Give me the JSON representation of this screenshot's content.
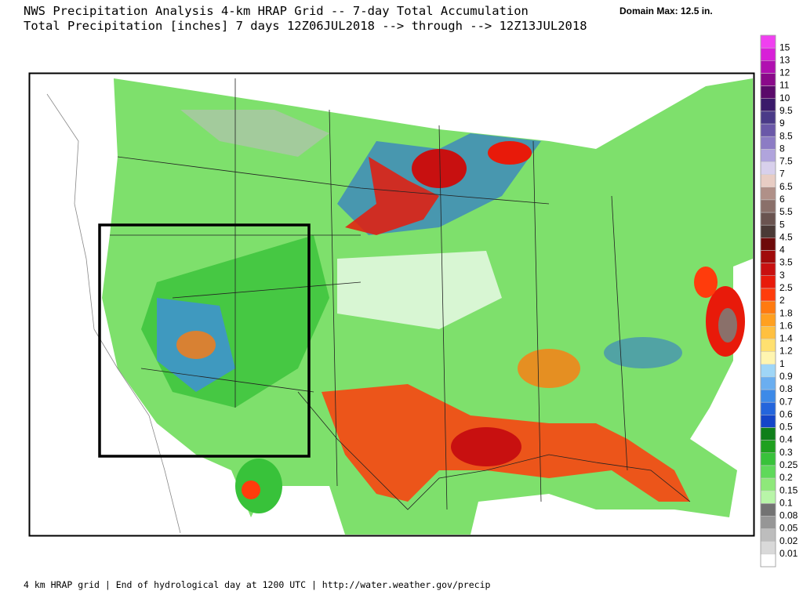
{
  "header": {
    "title": "NWS Precipitation Analysis 4-km HRAP Grid -- 7-day Total Accumulation",
    "subtitle": "Total Precipitation [inches] 7 days 12Z06JUL2018 --> through --> 12Z13JUL2018",
    "domain_max": "Domain Max: 12.5 in."
  },
  "legend": {
    "labels": [
      "0.01",
      "0.02",
      "0.05",
      "0.08",
      "0.1",
      "0.15",
      "0.2",
      "0.25",
      "0.3",
      "0.4",
      "0.5",
      "0.6",
      "0.7",
      "0.8",
      "0.9",
      "1",
      "1.2",
      "1.4",
      "1.6",
      "1.8",
      "2",
      "2.5",
      "3",
      "3.5",
      "4",
      "4.5",
      "5",
      "5.5",
      "6",
      "6.5",
      "7",
      "7.5",
      "8",
      "8.5",
      "9",
      "9.5",
      "10",
      "11",
      "12",
      "13",
      "15"
    ],
    "colors": [
      "#ffffff",
      "#d9d9d9",
      "#bdbdbd",
      "#969696",
      "#737373",
      "#b8f5a8",
      "#8ee87a",
      "#5fd95a",
      "#38c23a",
      "#1fa01f",
      "#0f7f1a",
      "#1445c8",
      "#2465dc",
      "#3d8ae8",
      "#6aaef0",
      "#9fd6f7",
      "#fff5b0",
      "#ffe070",
      "#ffc040",
      "#ffa020",
      "#ff7a10",
      "#ff3c0c",
      "#e81a0a",
      "#c81010",
      "#a00a0a",
      "#6e0a0a",
      "#4a3a36",
      "#6a5450",
      "#8a706a",
      "#b09088",
      "#e8cdc4",
      "#d8d0ec",
      "#b0a4dc",
      "#8c7cc4",
      "#6a58a8",
      "#4a3a88",
      "#3a1a6a",
      "#5a0a6a",
      "#8a0a8a",
      "#b010b0",
      "#d820d8",
      "#f040f0"
    ]
  },
  "footer": "4 km HRAP grid | End of hydrological day at 1200 UTC | http://water.weather.gov/precip"
}
